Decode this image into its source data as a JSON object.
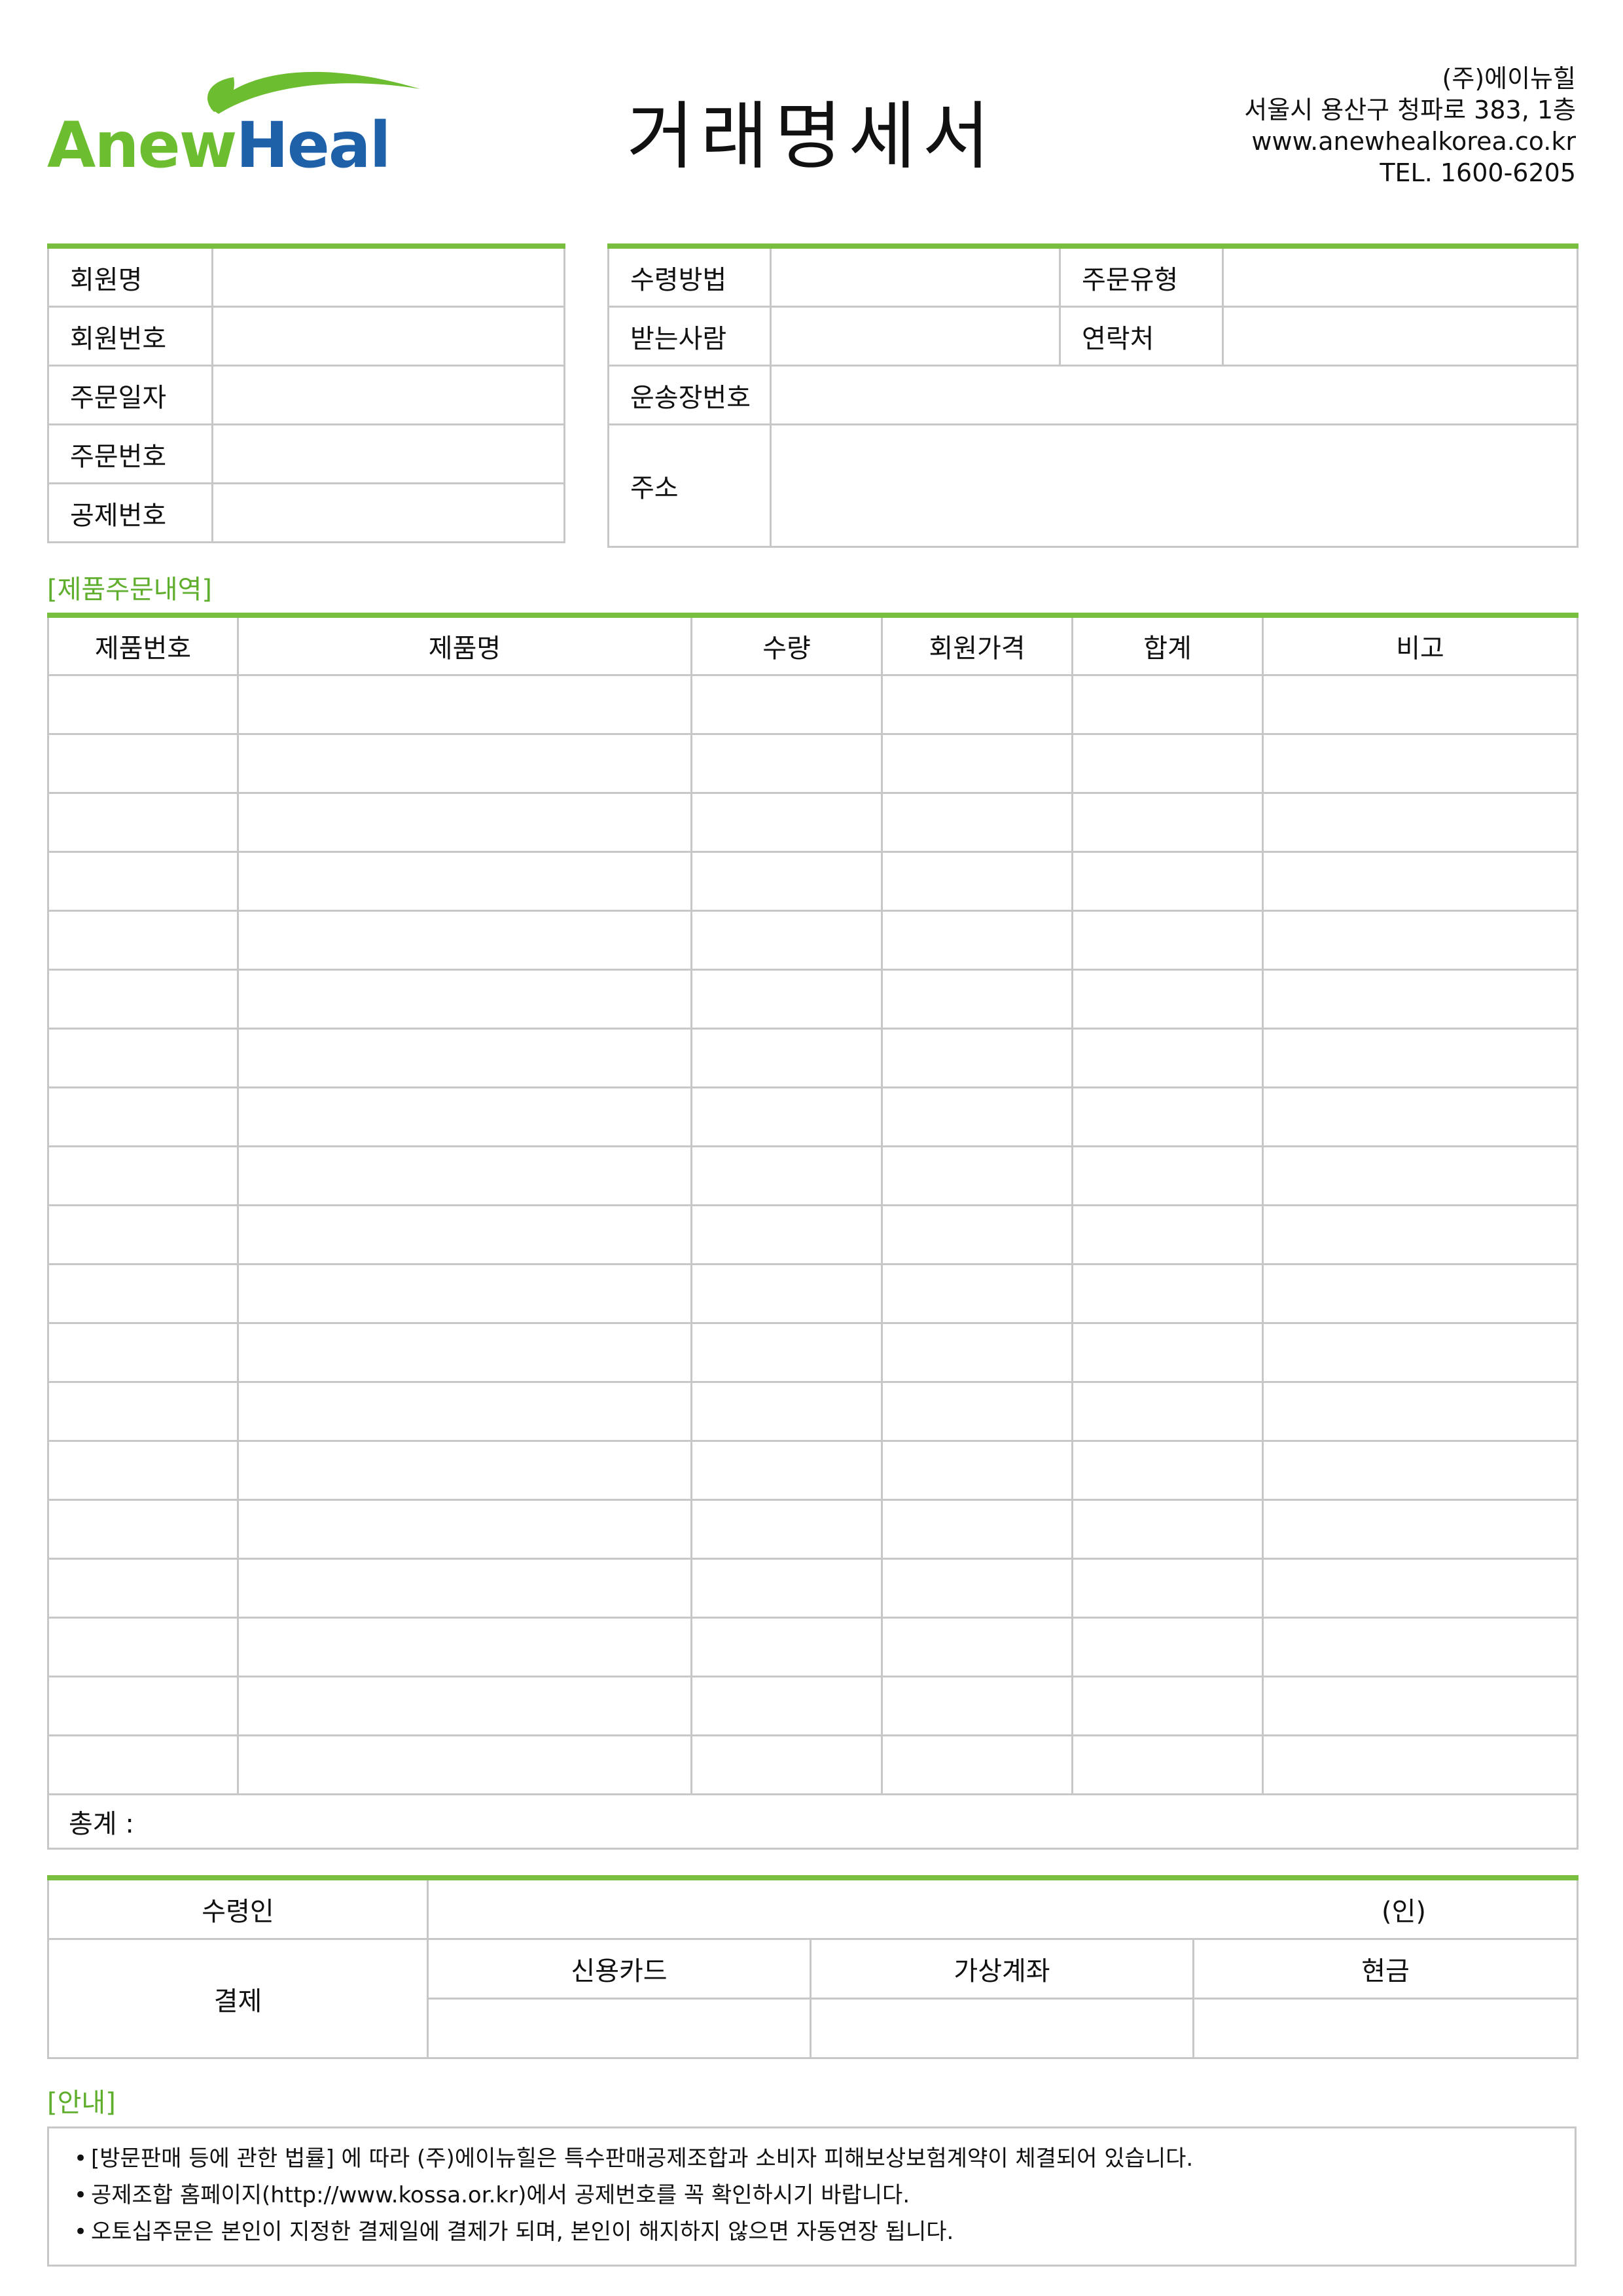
{
  "brand": {
    "logo_part1": "Anew",
    "logo_part2": "Heal",
    "green": "#6cbd2f",
    "blue": "#1e61a8"
  },
  "title": "거래명세서",
  "company": {
    "name": "(주)에이뉴힐",
    "address": "서울시 용산구 청파로 383, 1층",
    "website": "www.anewhealkorea.co.kr",
    "tel": "TEL. 1600-6205"
  },
  "member": {
    "name_label": "회원명",
    "number_label": "회원번호",
    "order_date_label": "주문일자",
    "order_number_label": "주문번호",
    "deduction_number_label": "공제번호"
  },
  "shipping": {
    "method_label": "수령방법",
    "order_type_label": "주문유형",
    "recipient_label": "받는사람",
    "contact_label": "연락처",
    "tracking_label": "운송장번호",
    "address_label": "주소"
  },
  "order": {
    "section_label": "[제품주문내역]",
    "columns": [
      "제품번호",
      "제품명",
      "수량",
      "회원가격",
      "합계",
      "비고"
    ],
    "total_label": "총계 :"
  },
  "payment": {
    "receiver_label": "수령인",
    "seal_label": "(인)",
    "payment_label": "결제",
    "methods": [
      "신용카드",
      "가상계좌",
      "현금"
    ]
  },
  "notice": {
    "section_label": "[안내]",
    "items": [
      "[방문판매 등에 관한 법률] 에 따라 (주)에이뉴힐은 특수판매공제조합과 소비자 피해보상보험계약이 체결되어 있습니다.",
      "공제조합 홈페이지(http://www.kossa.or.kr)에서 공제번호를 꼭 확인하시기 바랍니다.",
      "오토십주문은 본인이 지정한 결제일에 결제가 되며, 본인이 해지하지 않으면 자동연장 됩니다."
    ]
  },
  "colors": {
    "accent_green": "#78be3f",
    "border_gray": "#c7c7c7",
    "label_green": "#5fae2d"
  }
}
